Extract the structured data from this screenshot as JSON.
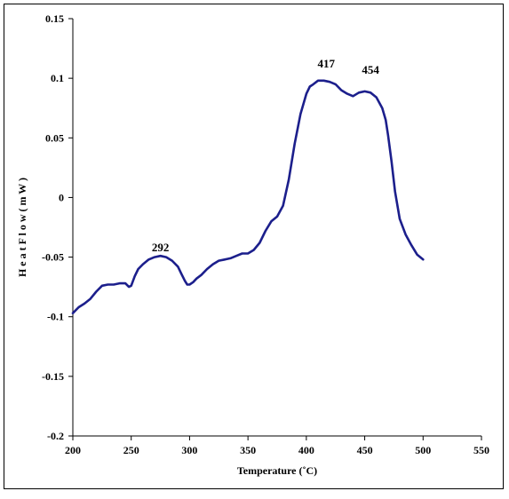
{
  "chart_data": {
    "type": "line",
    "title": "",
    "xlabel": "Temperature (˚C)",
    "ylabel": "H e a t  F l o w  ( m W )",
    "xlim": [
      200,
      550
    ],
    "ylim": [
      -0.2,
      0.15
    ],
    "xticks": [
      200,
      250,
      300,
      350,
      400,
      450,
      500,
      550
    ],
    "yticks": [
      -0.2,
      -0.15,
      -0.1,
      -0.05,
      0,
      0.05,
      0.1,
      0.15
    ],
    "xtick_labels": [
      "200",
      "250",
      "300",
      "350",
      "400",
      "450",
      "500",
      "550"
    ],
    "ytick_labels": [
      "-0.2",
      "-0.15",
      "-0.1",
      "-0.05",
      "0",
      "0.05",
      "0.1",
      "0.15"
    ],
    "grid": false,
    "legend": "none",
    "line_color": "#1c1f8c",
    "series": [
      {
        "x": [
          200,
          205,
          210,
          215,
          220,
          225,
          230,
          235,
          240,
          245,
          248,
          250,
          253,
          256,
          260,
          265,
          270,
          275,
          280,
          285,
          290,
          293,
          296,
          298,
          300,
          303,
          306,
          310,
          315,
          320,
          325,
          330,
          335,
          340,
          345,
          350,
          355,
          360,
          365,
          370,
          375,
          380,
          385,
          390,
          395,
          400,
          403,
          406,
          410,
          415,
          420,
          425,
          430,
          435,
          440,
          445,
          450,
          455,
          460,
          465,
          468,
          470,
          473,
          476,
          480,
          485,
          490,
          495,
          500
        ],
        "y": [
          -0.097,
          -0.092,
          -0.089,
          -0.085,
          -0.079,
          -0.074,
          -0.073,
          -0.073,
          -0.072,
          -0.072,
          -0.075,
          -0.074,
          -0.066,
          -0.06,
          -0.056,
          -0.052,
          -0.05,
          -0.049,
          -0.05,
          -0.053,
          -0.058,
          -0.064,
          -0.07,
          -0.073,
          -0.073,
          -0.071,
          -0.068,
          -0.065,
          -0.06,
          -0.056,
          -0.053,
          -0.052,
          -0.051,
          -0.049,
          -0.047,
          -0.047,
          -0.044,
          -0.038,
          -0.028,
          -0.02,
          -0.016,
          -0.007,
          0.015,
          0.045,
          0.07,
          0.087,
          0.093,
          0.095,
          0.098,
          0.098,
          0.097,
          0.095,
          0.09,
          0.087,
          0.085,
          0.088,
          0.089,
          0.088,
          0.084,
          0.075,
          0.065,
          0.052,
          0.03,
          0.005,
          -0.018,
          -0.031,
          -0.04,
          -0.048,
          -0.052
        ]
      }
    ],
    "annotations": [
      {
        "text": "292",
        "x": 275,
        "y": -0.045
      },
      {
        "text": "417",
        "x": 417,
        "y": 0.109
      },
      {
        "text": "454",
        "x": 455,
        "y": 0.104
      }
    ]
  }
}
